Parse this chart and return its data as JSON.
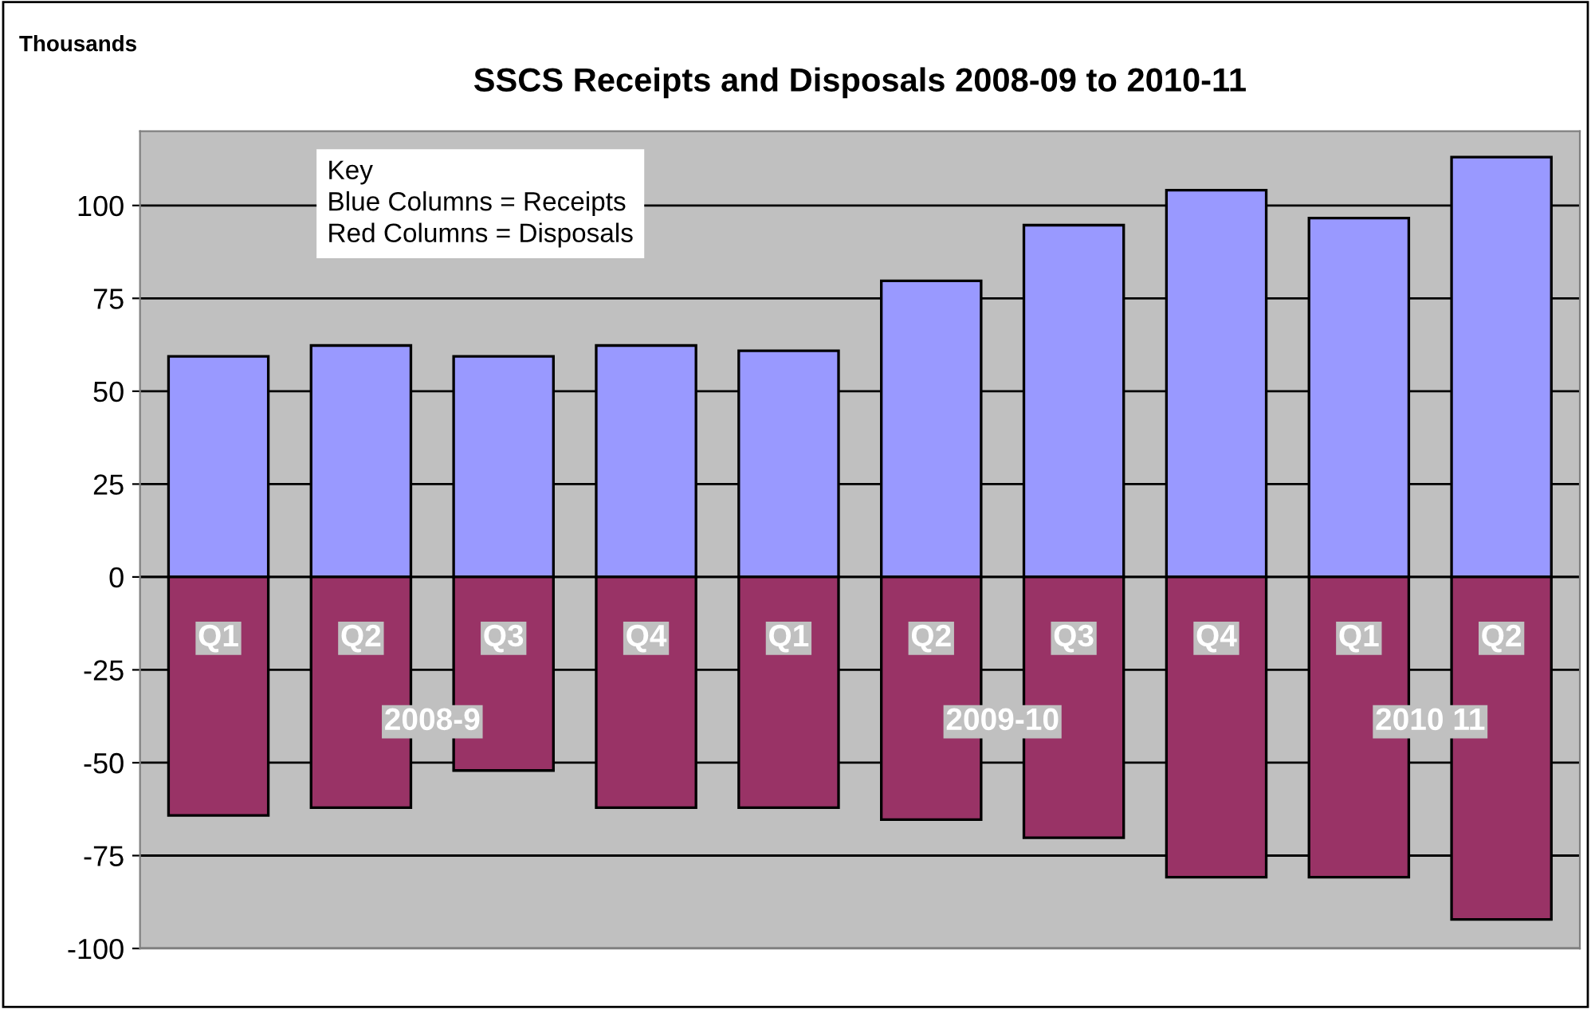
{
  "chart_data": {
    "type": "bar",
    "title": "SSCS Receipts and Disposals 2008-09 to 2010-11",
    "ylabel": "Thousands",
    "categories": [
      "Q1",
      "Q2",
      "Q3",
      "Q4",
      "Q1",
      "Q2",
      "Q3",
      "Q4",
      "Q1",
      "Q2"
    ],
    "series": [
      {
        "color": "#9999ff",
        "values": [
          59.4,
          62.3,
          59.4,
          62.3,
          60.9,
          79.7,
          94.7,
          104.1,
          96.6,
          113
        ]
      },
      {
        "color": "#993366",
        "values": [
          -64.2,
          -62.1,
          -52.1,
          -62.1,
          -62.1,
          -65.3,
          -70.2,
          -80.8,
          -80.8,
          -92.2
        ]
      }
    ],
    "annotations": [
      "Key\nBlue Columns = Receipts\nRed Columns = Disposals",
      "2008-9",
      "2009-10",
      "2010 11"
    ],
    "ylim": [
      -100,
      120
    ],
    "yticks": [
      -100,
      -75,
      -50,
      -25,
      0,
      25,
      50,
      75,
      100
    ],
    "grid": "y",
    "legend": false,
    "stacked": true
  }
}
